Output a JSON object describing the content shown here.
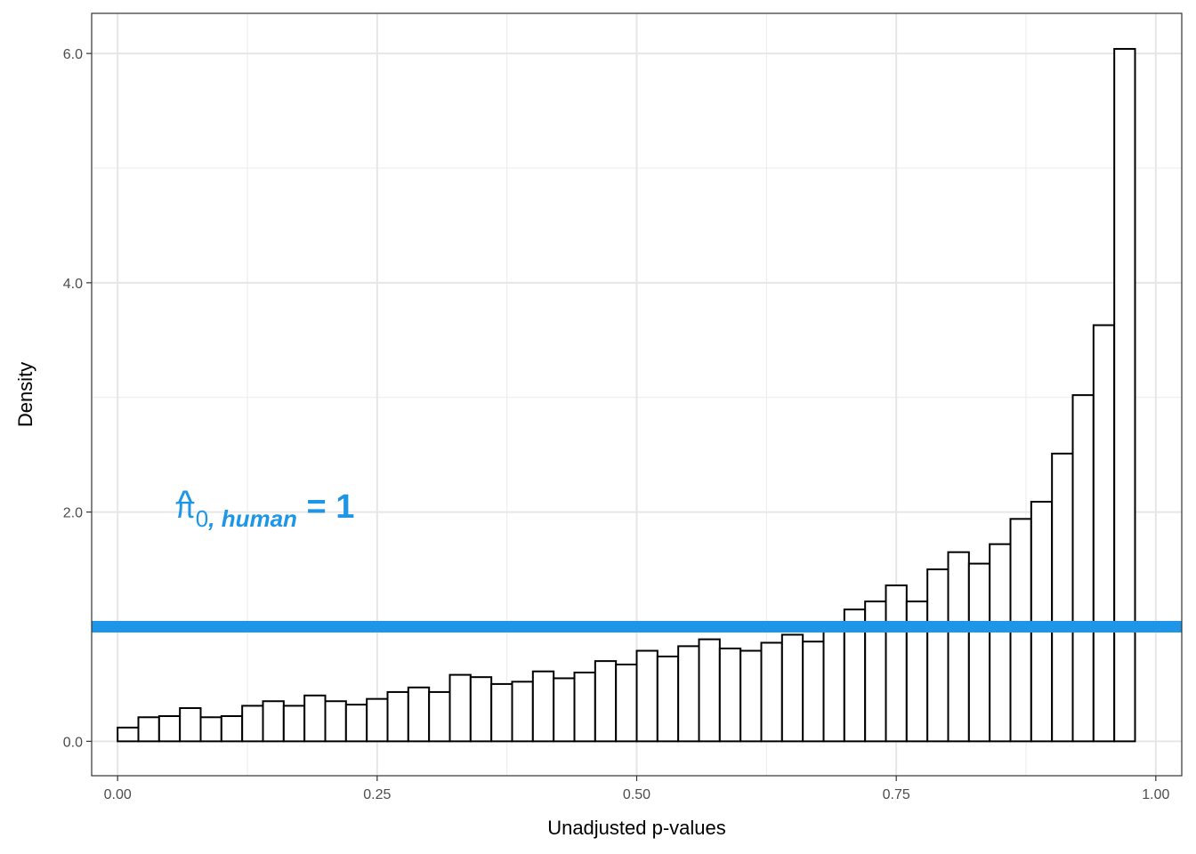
{
  "chart_data": {
    "type": "bar",
    "xlabel": "Unadjusted p-values",
    "ylabel": "Density",
    "xlim": [
      -0.025,
      1.025
    ],
    "ylim": [
      -0.3,
      6.35
    ],
    "x_ticks": [
      "0.00",
      "0.25",
      "0.50",
      "0.75",
      "1.00"
    ],
    "y_ticks": [
      "0.0",
      "2.0",
      "4.0",
      "6.0"
    ],
    "grid": true,
    "bin_width": 0.02,
    "bins_start": 0.0,
    "values": [
      0.12,
      0.21,
      0.22,
      0.29,
      0.21,
      0.22,
      0.31,
      0.35,
      0.31,
      0.4,
      0.35,
      0.32,
      0.37,
      0.43,
      0.47,
      0.43,
      0.58,
      0.56,
      0.5,
      0.52,
      0.61,
      0.55,
      0.6,
      0.7,
      0.67,
      0.79,
      0.74,
      0.83,
      0.89,
      0.81,
      0.79,
      0.86,
      0.93,
      0.87,
      1.0,
      1.15,
      1.22,
      1.36,
      1.22,
      1.5,
      1.65,
      1.55,
      1.72,
      1.94,
      2.09,
      2.51,
      3.02,
      3.63,
      6.04
    ],
    "hline": {
      "y": 1.0,
      "color": "#1e96e8"
    },
    "annotation": {
      "pi": "π",
      "hat": "^",
      "subscript_zero": "0",
      "subscript_label": ", human",
      "equals": " = 1",
      "x": 0.055,
      "y": 1.95,
      "color": "#1e96e8"
    },
    "bar_fill": "#ffffff",
    "bar_stroke": "#000000"
  }
}
